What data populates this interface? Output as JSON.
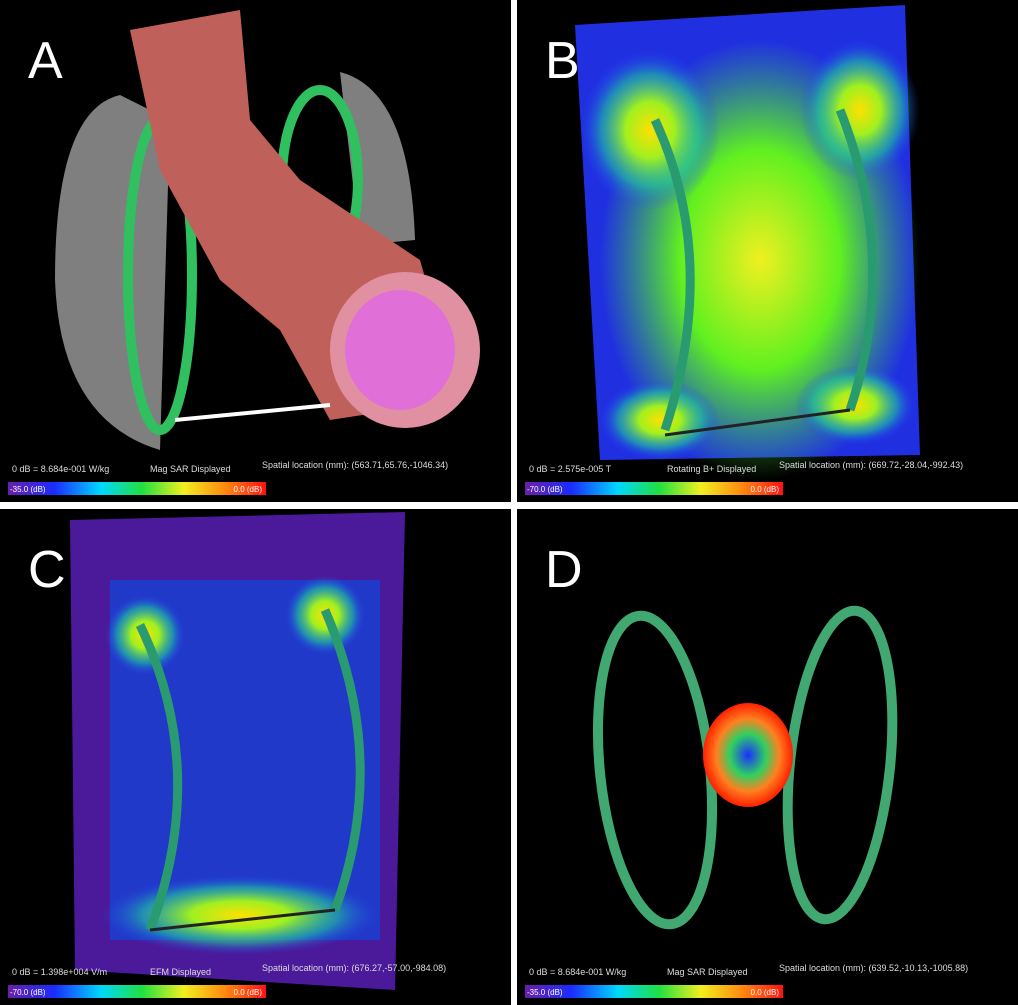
{
  "panels": [
    {
      "label": "A",
      "scale": "0 dB = 8.684e-001 W/kg",
      "mode": "Mag SAR Displayed",
      "location": "Spatial location (mm): (563.71,65.76,-1046.34)",
      "min": "-35.0 (dB)",
      "max": "0.0 (dB)"
    },
    {
      "label": "B",
      "scale": "0 dB = 2.575e-005 T",
      "mode": "Rotating B+ Displayed",
      "location": "Spatial location (mm): (669.72,-28.04,-992.43)",
      "min": "-70.0 (dB)",
      "max": "0.0 (dB)"
    },
    {
      "label": "C",
      "scale": "0 dB = 1.398e+004 V/m",
      "mode": "EFM Displayed",
      "location": "Spatial location (mm): (676.27,-57.00,-984.08)",
      "min": "-70.0 (dB)",
      "max": "0.0 (dB)"
    },
    {
      "label": "D",
      "scale": "0 dB = 8.684e-001 W/kg",
      "mode": "Mag SAR Displayed",
      "location": "Spatial location (mm): (639.52,-10.13,-1005.88)",
      "min": "-35.0 (dB)",
      "max": "0.0 (dB)"
    }
  ]
}
